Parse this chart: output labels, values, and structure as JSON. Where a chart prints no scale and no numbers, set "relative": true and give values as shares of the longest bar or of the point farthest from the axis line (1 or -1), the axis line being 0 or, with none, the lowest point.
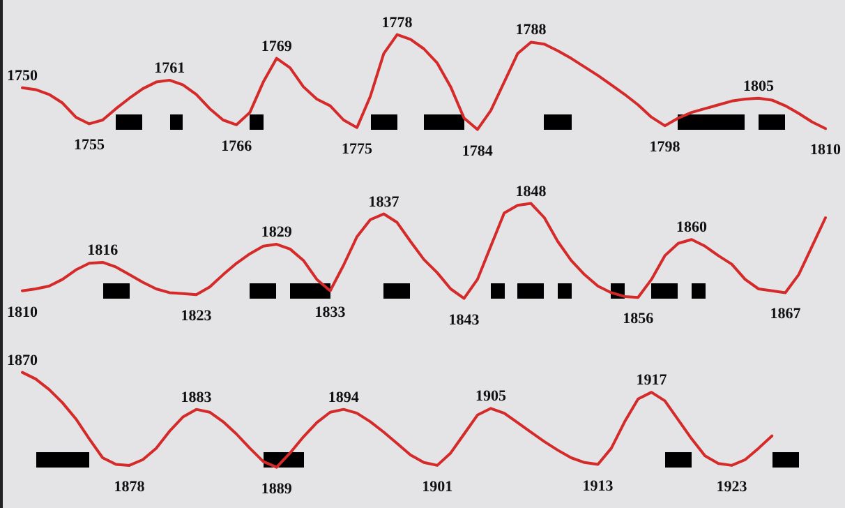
{
  "chart_data": [
    {
      "type": "line",
      "relative": true,
      "line_style": "solid",
      "categories": [
        null,
        null,
        null,
        null,
        null,
        null,
        null,
        null,
        null,
        null,
        null,
        null,
        null,
        null,
        null,
        null,
        null,
        null,
        null,
        null,
        null,
        null,
        null,
        null,
        null,
        null,
        null,
        null,
        null,
        null,
        null,
        null,
        null,
        null,
        null,
        null,
        null,
        null,
        null,
        null,
        null,
        null,
        null,
        null,
        null,
        null,
        null,
        null,
        null,
        null,
        null,
        null,
        null,
        null,
        null,
        null,
        null,
        null,
        null,
        null,
        null
      ],
      "series": [
        {
          "color": "#d42a2a",
          "values": [
            0.44,
            0.42,
            0.37,
            0.28,
            0.13,
            0.06,
            0.1,
            0.22,
            0.33,
            0.43,
            0.5,
            0.52,
            0.47,
            0.37,
            0.22,
            0.1,
            0.05,
            0.18,
            0.5,
            0.75,
            0.65,
            0.45,
            0.32,
            0.25,
            0.1,
            0.02,
            0.35,
            0.8,
            1,
            0.95,
            0.85,
            0.7,
            0.45,
            0.12,
            0,
            0.2,
            0.5,
            0.8,
            0.92,
            0.9,
            0.83,
            0.75,
            0.66,
            0.57,
            0.47,
            0.37,
            0.26,
            0.13,
            0.04,
            0.12,
            0.18,
            0.22,
            0.26,
            0.3,
            0.32,
            0.33,
            0.31,
            0.25,
            0.17,
            0.08,
            0.01
          ]
        }
      ],
      "annotations": [
        "1750",
        "1755",
        "1761",
        "1766",
        "1769",
        "1775",
        "1778",
        "1784",
        "1788",
        "1798",
        "1805",
        "1810"
      ]
    },
    {
      "type": "line",
      "relative": true,
      "line_style": "solid",
      "categories": [
        null,
        null,
        null,
        null,
        null,
        null,
        null,
        null,
        null,
        null,
        null,
        null,
        null,
        null,
        null,
        null,
        null,
        null,
        null,
        null,
        null,
        null,
        null,
        null,
        null,
        null,
        null,
        null,
        null,
        null,
        null,
        null,
        null,
        null,
        null,
        null,
        null,
        null,
        null,
        null,
        null,
        null,
        null,
        null,
        null,
        null,
        null,
        null,
        null,
        null,
        null,
        null,
        null,
        null,
        null,
        null,
        null,
        null,
        null,
        null,
        null
      ],
      "series": [
        {
          "color": "#d42a2a",
          "values": [
            0.08,
            0.1,
            0.13,
            0.2,
            0.3,
            0.37,
            0.38,
            0.33,
            0.25,
            0.17,
            0.1,
            0.06,
            0.05,
            0.04,
            0.12,
            0.25,
            0.37,
            0.47,
            0.55,
            0.57,
            0.52,
            0.4,
            0.2,
            0.08,
            0.35,
            0.65,
            0.83,
            0.89,
            0.8,
            0.6,
            0.41,
            0.27,
            0.1,
            0,
            0.2,
            0.55,
            0.9,
            0.98,
            1,
            0.85,
            0.6,
            0.4,
            0.25,
            0.13,
            0.06,
            0.02,
            0.01,
            0.2,
            0.45,
            0.58,
            0.62,
            0.55,
            0.45,
            0.36,
            0.2,
            0.1,
            0.08,
            0.06,
            0.25,
            0.55,
            0.85
          ]
        }
      ],
      "annotations": [
        "1810",
        "1816",
        "1823",
        "1829",
        "1833",
        "1837",
        "1843",
        "1848",
        "1856",
        "1860",
        "1867"
      ]
    },
    {
      "type": "line",
      "relative": true,
      "line_style": "solid",
      "categories": [
        null,
        null,
        null,
        null,
        null,
        null,
        null,
        null,
        null,
        null,
        null,
        null,
        null,
        null,
        null,
        null,
        null,
        null,
        null,
        null,
        null,
        null,
        null,
        null,
        null,
        null,
        null,
        null,
        null,
        null,
        null,
        null,
        null,
        null,
        null,
        null,
        null,
        null,
        null,
        null,
        null,
        null,
        null,
        null,
        null,
        null,
        null,
        null,
        null,
        null,
        null,
        null,
        null,
        null,
        null,
        null,
        null,
        null,
        null,
        null,
        null
      ],
      "series": [
        {
          "color": "#d42a2a",
          "values": [
            1,
            0.93,
            0.82,
            0.68,
            0.51,
            0.3,
            0.1,
            0.03,
            0.02,
            0.08,
            0.2,
            0.38,
            0.53,
            0.61,
            0.58,
            0.48,
            0.35,
            0.2,
            0.06,
            0,
            0.15,
            0.32,
            0.47,
            0.58,
            0.61,
            0.57,
            0.48,
            0.37,
            0.25,
            0.13,
            0.05,
            0.02,
            0.15,
            0.35,
            0.55,
            0.62,
            0.57,
            0.47,
            0.37,
            0.27,
            0.18,
            0.1,
            0.05,
            0.03,
            0.2,
            0.48,
            0.72,
            0.79,
            0.7,
            0.5,
            0.3,
            0.12,
            0.04,
            0.02,
            0.08,
            0.2,
            0.33,
            null,
            null,
            null,
            null
          ]
        }
      ],
      "annotations": [
        "1870",
        "1878",
        "1883",
        "1889",
        "1894",
        "1901",
        "1905",
        "1913",
        "1917",
        "1923"
      ]
    }
  ]
}
